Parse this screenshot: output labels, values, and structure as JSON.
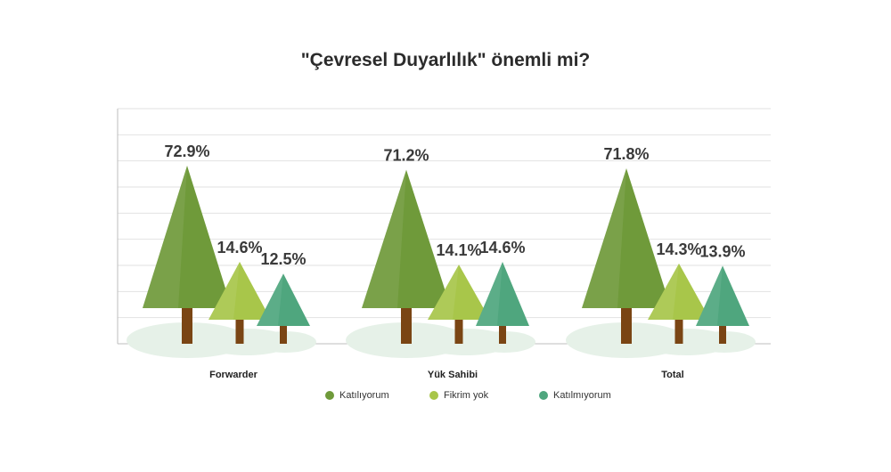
{
  "chart_data": {
    "type": "bar",
    "title": "\"Çevresel Duyarlılık\" önemli mi?",
    "categories": [
      "Forwarder",
      "Yük Sahibi",
      "Total"
    ],
    "series": [
      {
        "name": "Katılıyorum",
        "values": [
          72.9,
          71.2,
          71.8
        ],
        "labels": [
          "72.9%",
          "71.2%",
          "71.8%"
        ],
        "color": "#6f9a3a"
      },
      {
        "name": "Fikrim yok",
        "values": [
          14.6,
          14.1,
          14.3
        ],
        "labels": [
          "14.6%",
          "14.1%",
          "14.3%"
        ],
        "color": "#a8c64a"
      },
      {
        "name": "Katılmıyorum",
        "values": [
          12.5,
          14.6,
          13.9
        ],
        "labels": [
          "12.5%",
          "14.6%",
          "13.9%"
        ],
        "color": "#4fa67e"
      }
    ],
    "legend_position": "bottom",
    "grid": true
  },
  "colors": {
    "trunk": "#7a4514",
    "grid": "#e2e2e2",
    "axis": "#bdbdbd",
    "shadow": "#e6f1e8"
  }
}
